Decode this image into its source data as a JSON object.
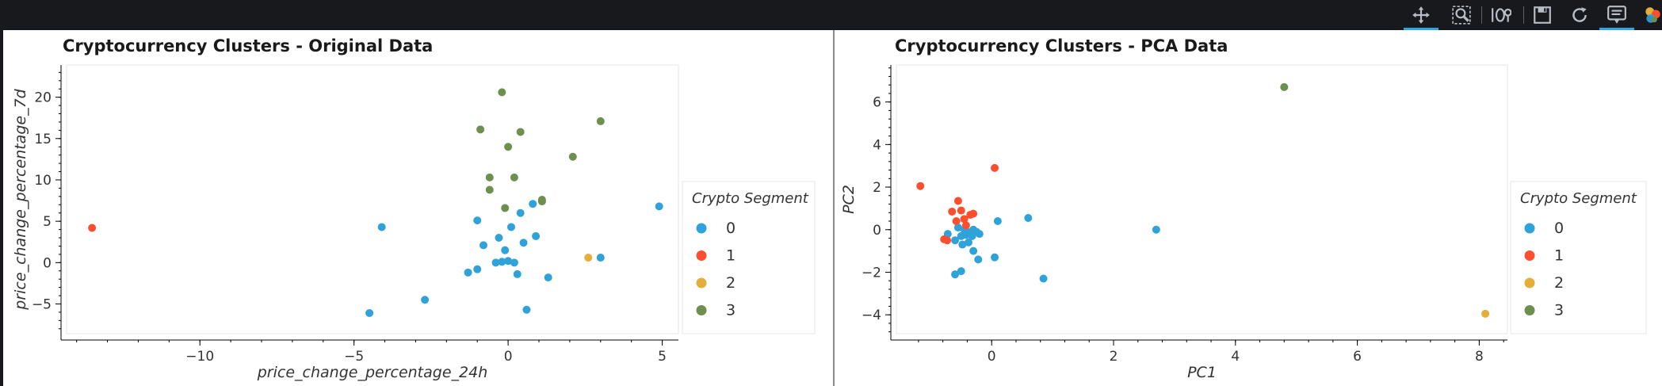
{
  "toolbar": {
    "tools": [
      {
        "name": "pan-icon",
        "active": true
      },
      {
        "name": "box-zoom-icon",
        "active": false
      },
      {
        "name": "wheel-zoom-icon",
        "active": false
      },
      {
        "name": "save-icon",
        "active": false
      },
      {
        "name": "reset-icon",
        "active": false
      },
      {
        "name": "hover-icon",
        "active": true
      },
      {
        "name": "bokeh-logo-icon",
        "active": false
      }
    ]
  },
  "colors": {
    "0": "#30a2da",
    "1": "#fc4f30",
    "2": "#e5ae38",
    "3": "#6d904f"
  },
  "chart_data": [
    {
      "type": "scatter",
      "title": "Cryptocurrency Clusters - Original Data",
      "xlabel": "price_change_percentage_24h",
      "ylabel": "price_change_percentage_7d",
      "xlim": [
        -14.3,
        5.5
      ],
      "ylim": [
        -8.5,
        23.8
      ],
      "xticks": [
        -10,
        -5,
        0,
        5
      ],
      "yticks": [
        -5,
        0,
        5,
        10,
        15,
        20
      ],
      "grid": false,
      "legend": {
        "title": "Crypto Segment",
        "position": "right",
        "entries": [
          "0",
          "1",
          "2",
          "3"
        ]
      },
      "series": [
        {
          "name": "0",
          "x": [
            -4.1,
            -4.5,
            -2.7,
            -1.0,
            -0.8,
            -1.0,
            -1.3,
            -0.3,
            -0.1,
            -0.2,
            -0.4,
            0.0,
            0.2,
            0.3,
            0.1,
            0.8,
            0.4,
            0.5,
            0.9,
            1.3,
            3.0,
            4.9,
            0.6
          ],
          "y": [
            4.3,
            -6.1,
            -4.5,
            5.1,
            2.1,
            -0.8,
            -1.2,
            3.0,
            1.5,
            0.1,
            0.0,
            0.2,
            0.0,
            -1.4,
            4.3,
            7.1,
            6.0,
            2.4,
            3.2,
            -1.8,
            0.6,
            6.8,
            -5.7
          ]
        },
        {
          "name": "1",
          "x": [
            -13.5
          ],
          "y": [
            4.2
          ]
        },
        {
          "name": "2",
          "x": [
            2.6
          ],
          "y": [
            0.6
          ]
        },
        {
          "name": "3",
          "x": [
            -0.2,
            -0.9,
            0.4,
            0.0,
            2.1,
            3.0,
            -0.6,
            -0.6,
            0.2,
            1.1,
            1.1,
            -0.1
          ],
          "y": [
            20.6,
            16.1,
            15.8,
            14.0,
            12.8,
            17.1,
            10.3,
            8.8,
            10.3,
            7.6,
            7.4,
            6.6
          ]
        }
      ]
    },
    {
      "type": "scatter",
      "title": "Cryptocurrency Clusters - PCA Data",
      "xlabel": "PC1",
      "ylabel": "PC2",
      "xlim": [
        -1.55,
        8.45
      ],
      "ylim": [
        -4.85,
        7.7
      ],
      "xticks": [
        0,
        2,
        4,
        6,
        8
      ],
      "yticks": [
        -4,
        -2,
        0,
        2,
        4,
        6
      ],
      "grid": false,
      "legend": {
        "title": "Crypto Segment",
        "position": "right",
        "entries": [
          "0",
          "1",
          "2",
          "3"
        ]
      },
      "series": [
        {
          "name": "0",
          "x": [
            -0.72,
            -0.55,
            -0.5,
            -0.45,
            -0.4,
            -0.35,
            -0.3,
            -0.25,
            -0.2,
            -0.6,
            -0.48,
            -0.38,
            -0.3,
            -0.42,
            -0.32,
            -0.22,
            -0.6,
            -0.5,
            0.1,
            0.6,
            0.05,
            0.85,
            2.7
          ],
          "y": [
            -0.2,
            0.1,
            -0.3,
            0.0,
            -0.1,
            -0.2,
            0.0,
            -0.1,
            -0.2,
            -0.5,
            -0.7,
            -0.6,
            -1.0,
            -0.25,
            -0.3,
            -1.4,
            -2.1,
            -1.95,
            0.4,
            0.55,
            -1.3,
            -2.3,
            0.0
          ]
        },
        {
          "name": "1",
          "x": [
            -1.17,
            -0.78,
            -0.73,
            -0.65,
            -0.55,
            -0.58,
            -0.45,
            -0.42,
            -0.35,
            -0.3,
            -0.5,
            0.05
          ],
          "y": [
            2.05,
            -0.45,
            -0.5,
            0.85,
            1.35,
            0.4,
            0.5,
            0.2,
            0.7,
            0.75,
            0.9,
            2.9
          ]
        },
        {
          "name": "2",
          "x": [
            8.1
          ],
          "y": [
            -3.95
          ]
        },
        {
          "name": "3",
          "x": [
            4.8
          ],
          "y": [
            6.7
          ]
        }
      ]
    }
  ]
}
